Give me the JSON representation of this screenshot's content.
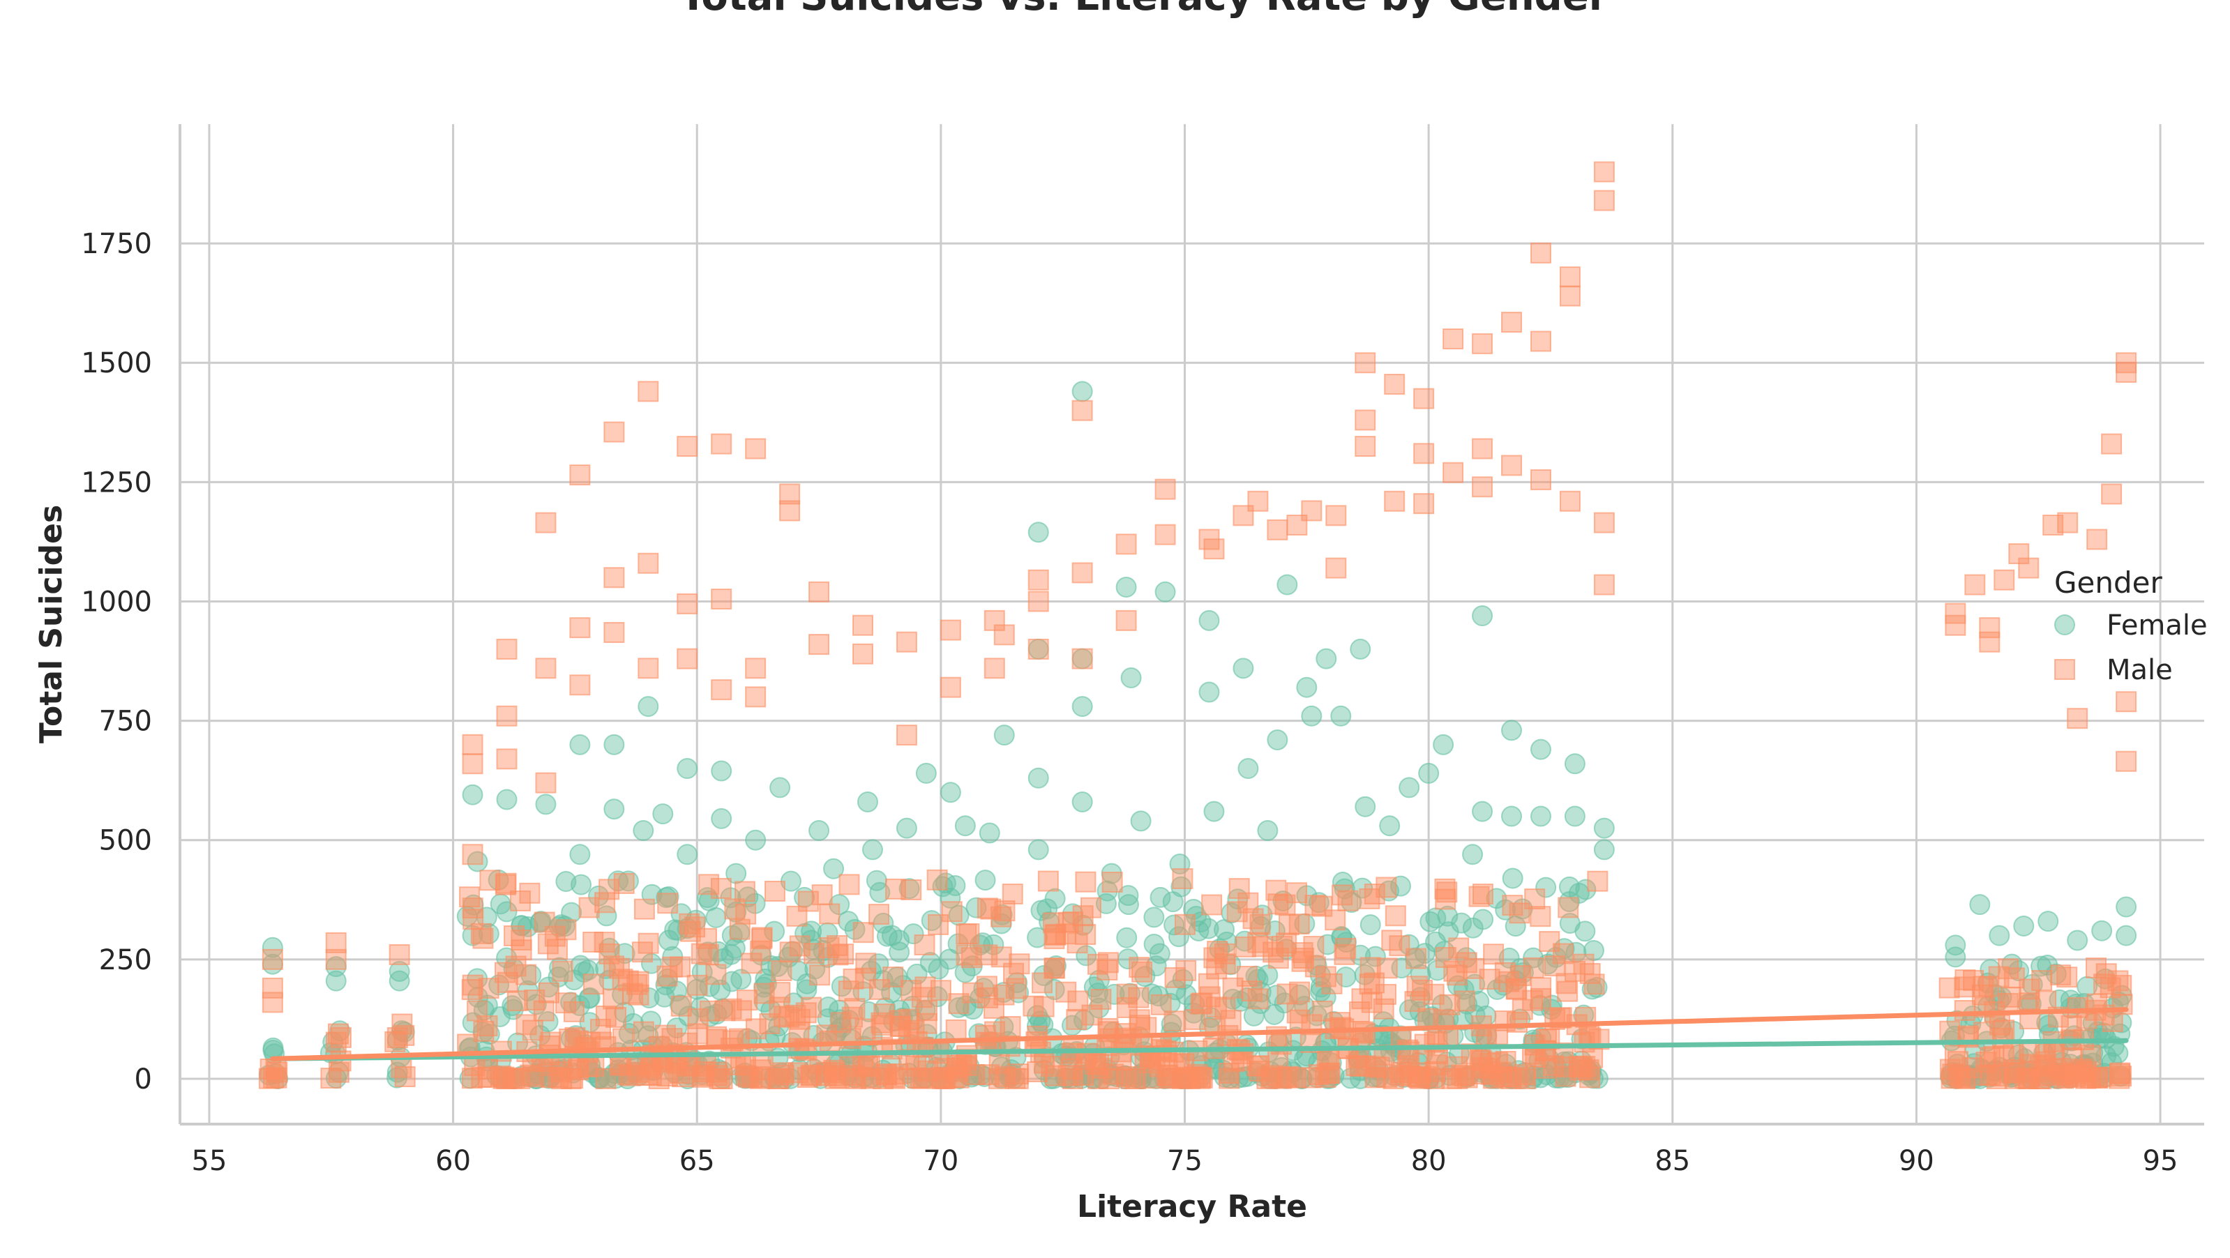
{
  "chart_data": {
    "type": "scatter",
    "title": "Total Suicides vs. Literacy Rate by Gender",
    "xlabel": "Literacy Rate",
    "ylabel": "Total Suicides",
    "xlim": [
      54.4,
      95.9
    ],
    "ylim": [
      -95,
      2000
    ],
    "xticks": [
      55,
      60,
      65,
      70,
      75,
      80,
      85,
      90,
      95
    ],
    "yticks": [
      0,
      250,
      500,
      750,
      1000,
      1250,
      1500,
      1750
    ],
    "grid": true,
    "legend": {
      "title": "Gender",
      "placement": "right"
    },
    "series": [
      {
        "name": "Female",
        "color": "#66c2a5",
        "marker": "circle",
        "trend": {
          "x": [
            56.3,
            94.3
          ],
          "y": [
            42,
            80
          ]
        },
        "points": [
          [
            56.3,
            275
          ],
          [
            56.3,
            240
          ],
          [
            57.6,
            235
          ],
          [
            57.6,
            205
          ],
          [
            58.9,
            225
          ],
          [
            58.9,
            205
          ],
          [
            60.4,
            300
          ],
          [
            60.5,
            455
          ],
          [
            60.4,
            595
          ],
          [
            61.1,
            585
          ],
          [
            61.1,
            350
          ],
          [
            61.8,
            330
          ],
          [
            61.9,
            575
          ],
          [
            62.6,
            470
          ],
          [
            62.6,
            700
          ],
          [
            63.3,
            700
          ],
          [
            63.3,
            565
          ],
          [
            63.9,
            520
          ],
          [
            64.0,
            780
          ],
          [
            64.3,
            555
          ],
          [
            64.8,
            470
          ],
          [
            64.8,
            650
          ],
          [
            65.5,
            545
          ],
          [
            65.5,
            645
          ],
          [
            65.8,
            430
          ],
          [
            66.2,
            500
          ],
          [
            66.7,
            610
          ],
          [
            67.2,
            380
          ],
          [
            67.5,
            520
          ],
          [
            67.8,
            440
          ],
          [
            68.1,
            330
          ],
          [
            68.5,
            580
          ],
          [
            68.6,
            480
          ],
          [
            69.0,
            300
          ],
          [
            69.3,
            525
          ],
          [
            69.7,
            640
          ],
          [
            70.1,
            410
          ],
          [
            70.2,
            600
          ],
          [
            70.5,
            530
          ],
          [
            70.8,
            280
          ],
          [
            71.0,
            515
          ],
          [
            71.3,
            720
          ],
          [
            72.0,
            1145
          ],
          [
            72.0,
            900
          ],
          [
            72.0,
            630
          ],
          [
            72.0,
            480
          ],
          [
            72.9,
            1440
          ],
          [
            72.9,
            880
          ],
          [
            72.9,
            780
          ],
          [
            72.9,
            580
          ],
          [
            73.5,
            430
          ],
          [
            73.8,
            1030
          ],
          [
            73.9,
            840
          ],
          [
            74.1,
            540
          ],
          [
            74.5,
            380
          ],
          [
            74.6,
            1020
          ],
          [
            74.9,
            450
          ],
          [
            75.5,
            960
          ],
          [
            75.5,
            810
          ],
          [
            75.6,
            560
          ],
          [
            76.2,
            860
          ],
          [
            76.3,
            650
          ],
          [
            76.7,
            520
          ],
          [
            76.9,
            710
          ],
          [
            77.1,
            1035
          ],
          [
            77.5,
            820
          ],
          [
            77.6,
            760
          ],
          [
            77.9,
            880
          ],
          [
            78.2,
            760
          ],
          [
            78.6,
            900
          ],
          [
            78.7,
            570
          ],
          [
            79.2,
            530
          ],
          [
            79.6,
            610
          ],
          [
            80.0,
            640
          ],
          [
            80.3,
            700
          ],
          [
            80.9,
            470
          ],
          [
            81.1,
            970
          ],
          [
            81.1,
            560
          ],
          [
            81.7,
            730
          ],
          [
            81.7,
            550
          ],
          [
            82.3,
            690
          ],
          [
            82.3,
            550
          ],
          [
            83.0,
            660
          ],
          [
            83.0,
            550
          ],
          [
            83.6,
            525
          ],
          [
            83.6,
            480
          ],
          [
            90.8,
            280
          ],
          [
            90.8,
            255
          ],
          [
            91.3,
            365
          ],
          [
            91.7,
            300
          ],
          [
            92.2,
            320
          ],
          [
            92.7,
            330
          ],
          [
            93.3,
            290
          ],
          [
            93.8,
            310
          ],
          [
            94.3,
            360
          ],
          [
            94.3,
            300
          ]
        ]
      },
      {
        "name": "Male",
        "color": "#fc8d62",
        "marker": "square",
        "trend": {
          "x": [
            56.3,
            94.3
          ],
          "y": [
            42,
            145
          ]
        },
        "points": [
          [
            56.3,
            250
          ],
          [
            56.3,
            190
          ],
          [
            56.3,
            160
          ],
          [
            57.6,
            285
          ],
          [
            57.6,
            250
          ],
          [
            58.9,
            260
          ],
          [
            60.4,
            700
          ],
          [
            60.4,
            660
          ],
          [
            60.4,
            470
          ],
          [
            61.1,
            900
          ],
          [
            61.1,
            760
          ],
          [
            61.1,
            670
          ],
          [
            61.9,
            1165
          ],
          [
            61.9,
            860
          ],
          [
            61.9,
            620
          ],
          [
            62.6,
            1265
          ],
          [
            62.6,
            945
          ],
          [
            62.6,
            825
          ],
          [
            63.3,
            1355
          ],
          [
            63.3,
            1050
          ],
          [
            63.3,
            935
          ],
          [
            64.0,
            1440
          ],
          [
            64.0,
            1080
          ],
          [
            64.0,
            860
          ],
          [
            64.8,
            1325
          ],
          [
            64.8,
            995
          ],
          [
            64.8,
            880
          ],
          [
            65.5,
            1330
          ],
          [
            65.5,
            1005
          ],
          [
            65.5,
            815
          ],
          [
            66.2,
            1320
          ],
          [
            66.2,
            860
          ],
          [
            66.2,
            800
          ],
          [
            66.9,
            1225
          ],
          [
            66.9,
            1190
          ],
          [
            67.5,
            1020
          ],
          [
            67.5,
            910
          ],
          [
            68.4,
            950
          ],
          [
            68.4,
            890
          ],
          [
            69.3,
            915
          ],
          [
            69.3,
            720
          ],
          [
            70.2,
            940
          ],
          [
            70.2,
            820
          ],
          [
            71.1,
            960
          ],
          [
            71.1,
            860
          ],
          [
            71.3,
            930
          ],
          [
            72.0,
            1045
          ],
          [
            72.0,
            1000
          ],
          [
            72.0,
            900
          ],
          [
            72.9,
            1400
          ],
          [
            72.9,
            1060
          ],
          [
            72.9,
            880
          ],
          [
            73.8,
            1120
          ],
          [
            73.8,
            960
          ],
          [
            74.6,
            1235
          ],
          [
            74.6,
            1140
          ],
          [
            75.5,
            1130
          ],
          [
            75.6,
            1110
          ],
          [
            76.2,
            1180
          ],
          [
            76.5,
            1210
          ],
          [
            76.9,
            1150
          ],
          [
            77.3,
            1160
          ],
          [
            77.6,
            1190
          ],
          [
            78.1,
            1180
          ],
          [
            78.1,
            1070
          ],
          [
            78.7,
            1500
          ],
          [
            78.7,
            1380
          ],
          [
            78.7,
            1325
          ],
          [
            79.3,
            1455
          ],
          [
            79.3,
            1210
          ],
          [
            79.9,
            1425
          ],
          [
            79.9,
            1310
          ],
          [
            79.9,
            1205
          ],
          [
            80.5,
            1550
          ],
          [
            80.5,
            1270
          ],
          [
            81.1,
            1540
          ],
          [
            81.1,
            1320
          ],
          [
            81.1,
            1240
          ],
          [
            81.7,
            1585
          ],
          [
            81.7,
            1285
          ],
          [
            82.3,
            1730
          ],
          [
            82.3,
            1545
          ],
          [
            82.3,
            1255
          ],
          [
            82.9,
            1680
          ],
          [
            82.9,
            1640
          ],
          [
            82.9,
            1210
          ],
          [
            83.6,
            1900
          ],
          [
            83.6,
            1840
          ],
          [
            83.6,
            1165
          ],
          [
            83.6,
            1035
          ],
          [
            90.8,
            975
          ],
          [
            90.8,
            950
          ],
          [
            91.2,
            1035
          ],
          [
            91.5,
            945
          ],
          [
            91.5,
            915
          ],
          [
            91.8,
            1045
          ],
          [
            92.1,
            1100
          ],
          [
            92.3,
            1070
          ],
          [
            92.8,
            1160
          ],
          [
            93.1,
            1165
          ],
          [
            93.3,
            755
          ],
          [
            93.7,
            1130
          ],
          [
            94.0,
            1225
          ],
          [
            94.0,
            1330
          ],
          [
            94.3,
            1500
          ],
          [
            94.3,
            1480
          ],
          [
            94.3,
            790
          ],
          [
            94.3,
            665
          ]
        ]
      }
    ]
  }
}
